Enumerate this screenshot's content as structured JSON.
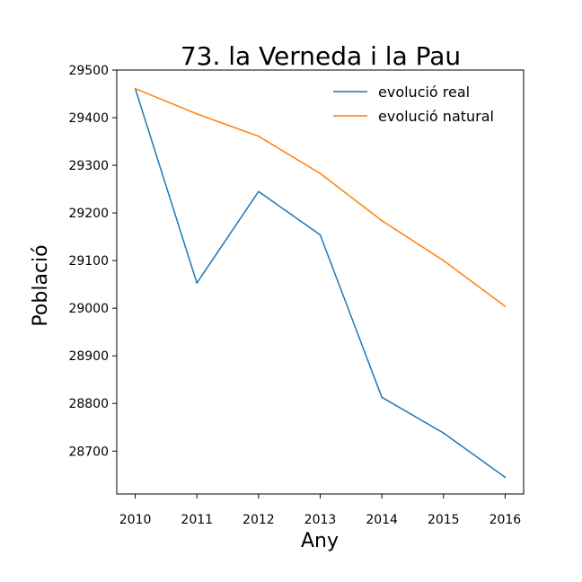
{
  "chart_data": {
    "type": "line",
    "title": "73. la Verneda i la Pau",
    "xlabel": "Any",
    "ylabel": "Població",
    "x": [
      2010,
      2011,
      2012,
      2013,
      2014,
      2015,
      2016
    ],
    "xticks": [
      "2010",
      "2011",
      "2012",
      "2013",
      "2014",
      "2015",
      "2016"
    ],
    "yticks": [
      "28700",
      "28800",
      "28900",
      "29000",
      "29100",
      "29200",
      "29300",
      "29400",
      "29500"
    ],
    "ylim": [
      28610,
      29500
    ],
    "xlim": [
      2009.7,
      2016.3
    ],
    "legend_position": "top-right",
    "grid": false,
    "series": [
      {
        "name": "evolució real",
        "color": "#1f77b4",
        "values": [
          29461,
          29053,
          29245,
          29154,
          28813,
          28738,
          28645
        ]
      },
      {
        "name": "evolució natural",
        "color": "#ff7f0e",
        "values": [
          29461,
          29408,
          29361,
          29283,
          29184,
          29100,
          29004
        ]
      }
    ]
  }
}
